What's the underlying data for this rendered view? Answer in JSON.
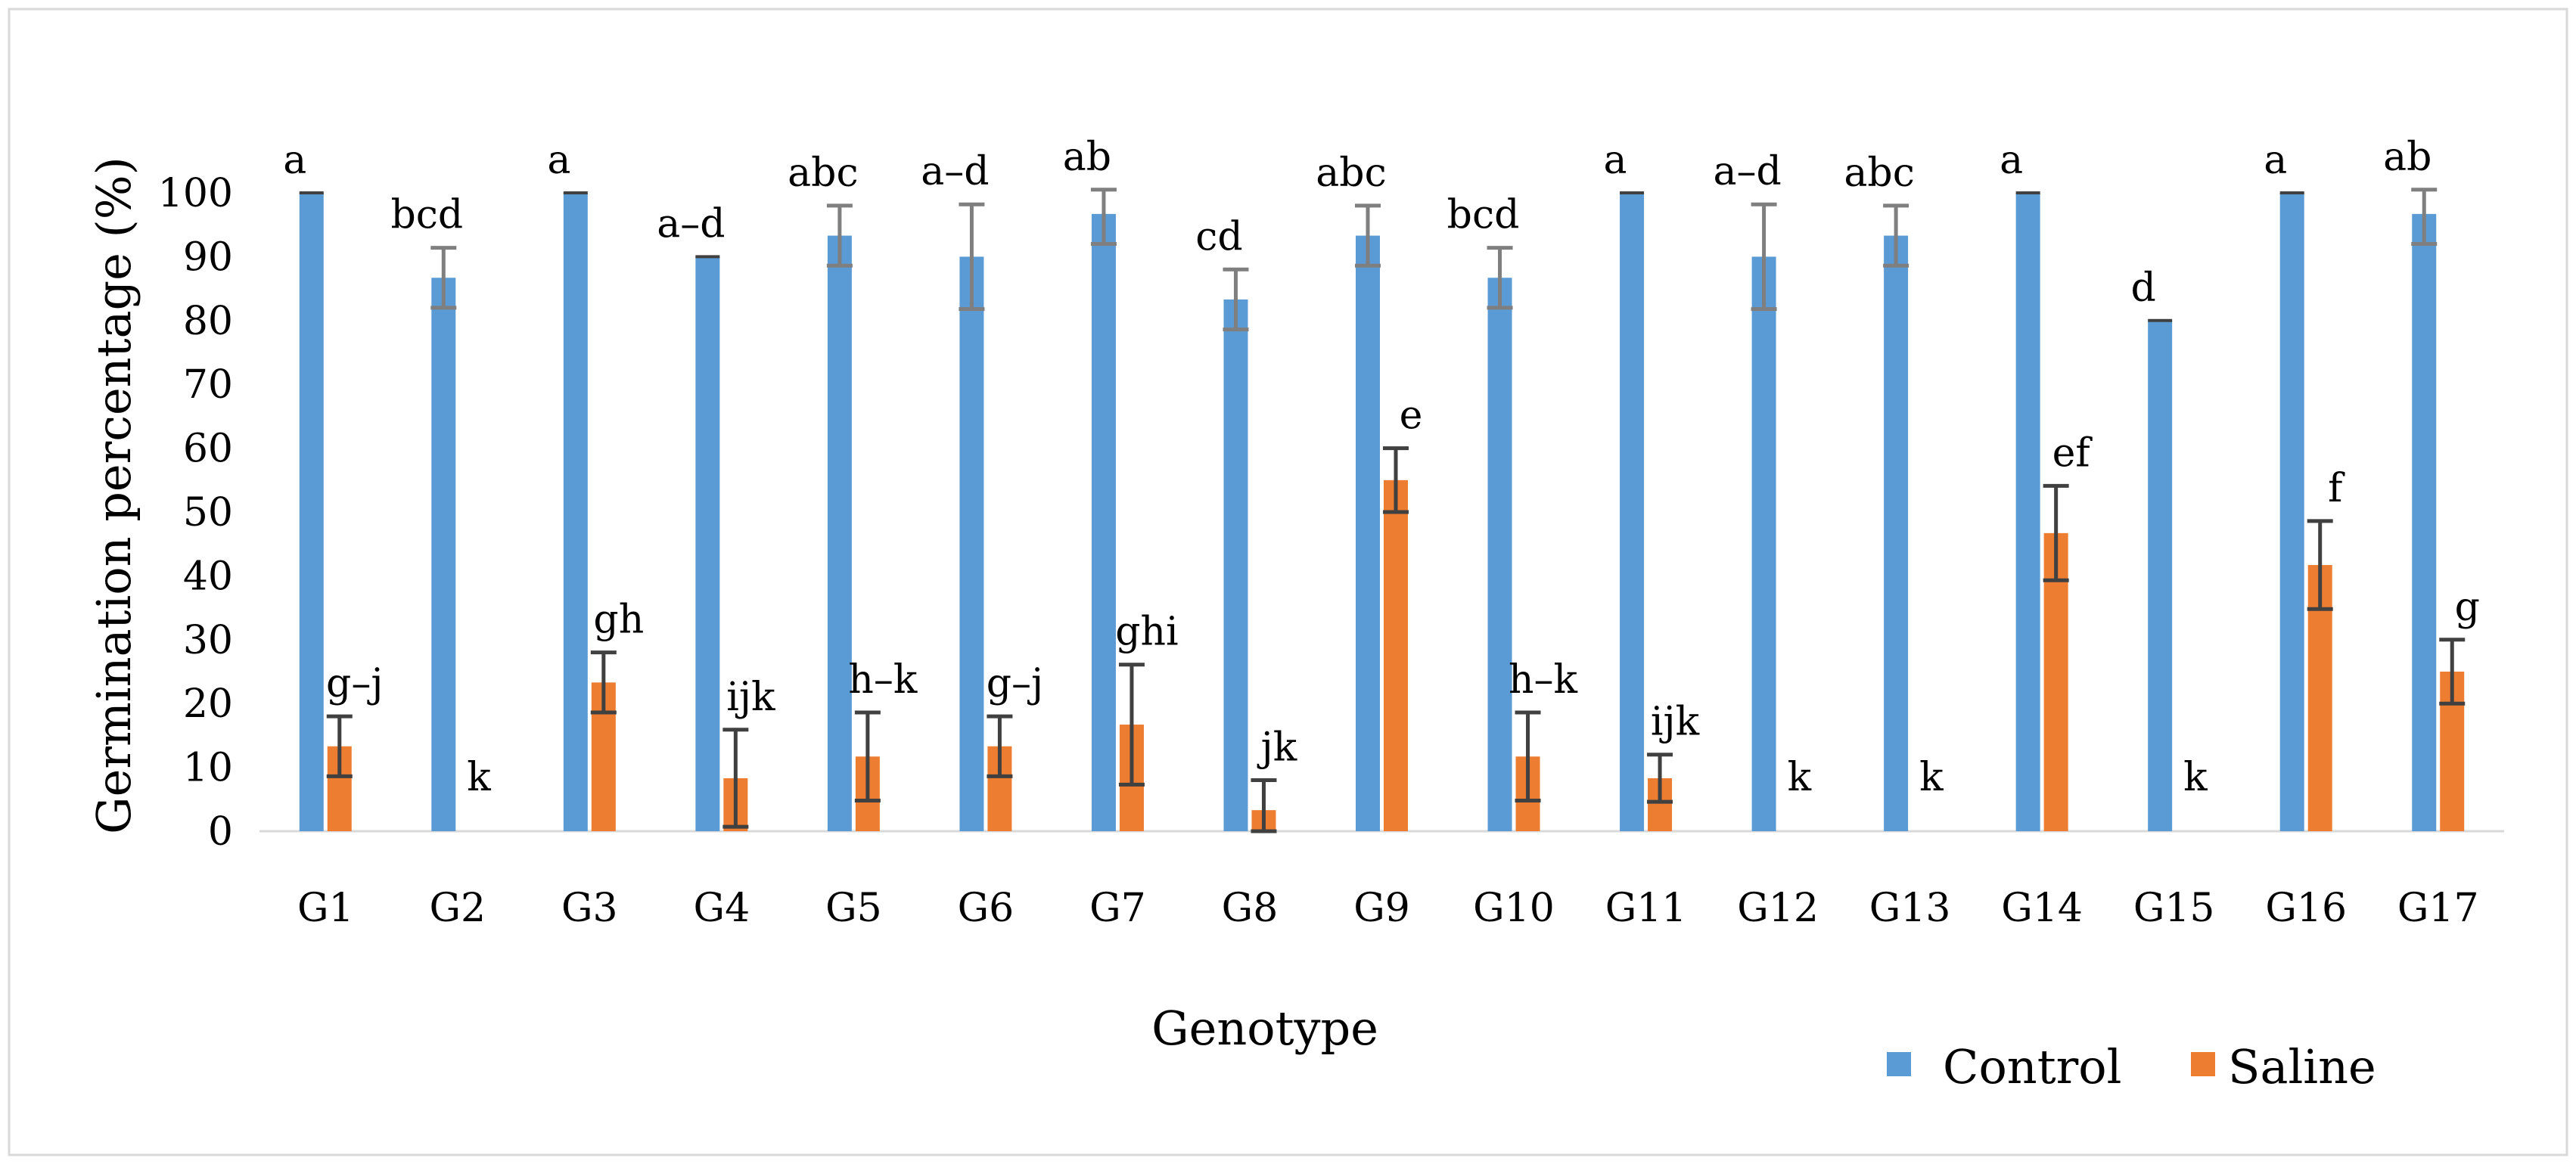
{
  "chart_data": {
    "type": "bar",
    "title": "",
    "xlabel": "Genotype",
    "ylabel": "Germination percentage (%)",
    "ylim": [
      0,
      100
    ],
    "yticks": [
      0,
      10,
      20,
      30,
      40,
      50,
      60,
      70,
      80,
      90,
      100
    ],
    "categories": [
      "G1",
      "G2",
      "G3",
      "G4",
      "G5",
      "G6",
      "G7",
      "G8",
      "G9",
      "G10",
      "G11",
      "G12",
      "G13",
      "G14",
      "G15",
      "G16",
      "G17"
    ],
    "series": [
      {
        "name": "Control",
        "color": "#5b9bd5",
        "values": [
          100,
          86.7,
          100,
          90,
          93.3,
          90,
          96.7,
          83.3,
          93.3,
          86.7,
          100,
          90,
          93.3,
          100,
          80,
          100,
          96.7
        ],
        "errors": [
          0,
          4.7,
          0,
          0,
          4.7,
          8.2,
          4.7,
          4.7,
          4.7,
          4.7,
          0,
          8.2,
          4.7,
          0,
          0,
          0,
          4.7
        ],
        "labels": [
          "a",
          "bcd",
          "a",
          "a–d",
          "abc",
          "a–d",
          "ab",
          "cd",
          "abc",
          "bcd",
          "a",
          "a–d",
          "abc",
          "a",
          "d",
          "a",
          "ab"
        ]
      },
      {
        "name": "Saline",
        "color": "#ed7d31",
        "values": [
          13.3,
          0,
          23.3,
          8.3,
          11.7,
          13.3,
          16.7,
          3.3,
          55,
          11.7,
          8.3,
          0,
          0,
          46.7,
          0,
          41.7,
          25
        ],
        "errors": [
          4.7,
          0,
          4.7,
          7.6,
          6.9,
          4.7,
          9.4,
          4.7,
          5.0,
          6.9,
          3.7,
          0,
          0,
          7.4,
          0,
          6.9,
          5.0
        ],
        "labels": [
          "g–j",
          "k",
          "gh",
          "ijk",
          "h–k",
          "g–j",
          "ghi",
          "jk",
          "e",
          "h–k",
          "ijk",
          "k",
          "k",
          "ef",
          "k",
          "f",
          "g"
        ]
      }
    ],
    "legend": {
      "position": "bottom-right",
      "entries": [
        "Control",
        "Saline"
      ]
    },
    "grid": false
  }
}
